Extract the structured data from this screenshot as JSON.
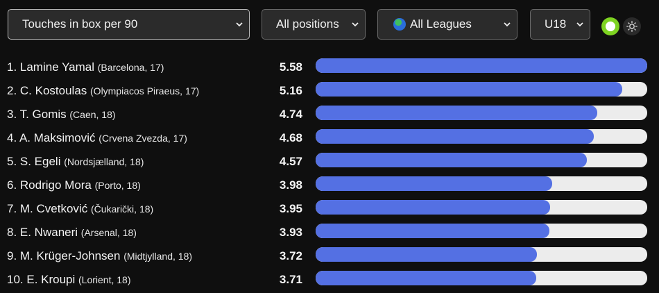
{
  "filters": {
    "metric": "Touches in box per 90",
    "position": "All positions",
    "league": "All Leagues",
    "age": "U18"
  },
  "theme": {
    "bar_color": "#5470e3",
    "track_color": "#ececec",
    "toggle_color": "#7ed321",
    "icons": [
      "chevron-down-icon",
      "globe-icon",
      "toggle-icon",
      "sun-icon"
    ]
  },
  "players": [
    {
      "rank_name": "1. Lamine Yamal",
      "club": "(Barcelona, 17)",
      "value": "5.58",
      "fraction": 1.0
    },
    {
      "rank_name": "2. C. Kostoulas",
      "club": "(Olympiacos Piraeus, 17)",
      "value": "5.16",
      "fraction": 0.925
    },
    {
      "rank_name": "3. T. Gomis",
      "club": "(Caen, 18)",
      "value": "4.74",
      "fraction": 0.849
    },
    {
      "rank_name": "4. A. Maksimović",
      "club": "(Crvena Zvezda, 17)",
      "value": "4.68",
      "fraction": 0.839
    },
    {
      "rank_name": "5. S. Egeli",
      "club": "(Nordsjælland, 18)",
      "value": "4.57",
      "fraction": 0.819
    },
    {
      "rank_name": "6. Rodrigo Mora",
      "club": "(Porto, 18)",
      "value": "3.98",
      "fraction": 0.713
    },
    {
      "rank_name": "7. M. Cvetković",
      "club": "(Čukarički, 18)",
      "value": "3.95",
      "fraction": 0.708
    },
    {
      "rank_name": "8. E. Nwaneri",
      "club": "(Arsenal, 18)",
      "value": "3.93",
      "fraction": 0.704
    },
    {
      "rank_name": "9. M. Krüger-Johnsen",
      "club": "(Midtjylland, 18)",
      "value": "3.72",
      "fraction": 0.667
    },
    {
      "rank_name": "10. E. Kroupi",
      "club": "(Lorient, 18)",
      "value": "3.71",
      "fraction": 0.665
    }
  ]
}
